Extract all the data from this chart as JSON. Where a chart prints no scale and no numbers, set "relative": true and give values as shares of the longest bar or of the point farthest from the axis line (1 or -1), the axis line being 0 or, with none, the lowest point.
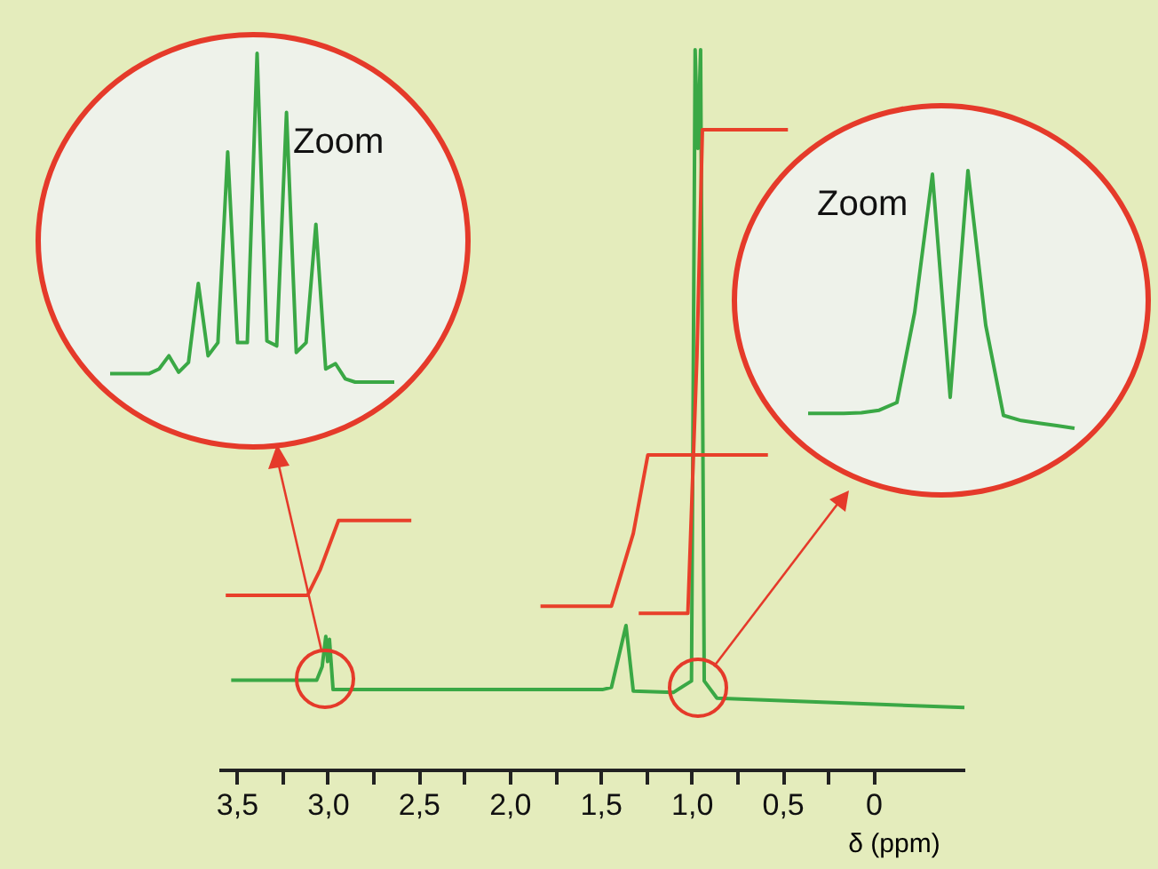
{
  "chart_data": [
    {
      "type": "line",
      "xlabel": "δ (ppm)",
      "relative": true,
      "xlim": [
        3.6,
        -0.5
      ],
      "xticks": [
        {
          "value": 3.5,
          "label": "3,5"
        },
        {
          "value": 3.25,
          "label": null
        },
        {
          "value": 3.0,
          "label": "3,0"
        },
        {
          "value": 2.75,
          "label": null
        },
        {
          "value": 2.5,
          "label": "2,5"
        },
        {
          "value": 2.25,
          "label": null
        },
        {
          "value": 2.0,
          "label": "2,0"
        },
        {
          "value": 1.75,
          "label": null
        },
        {
          "value": 1.5,
          "label": "1,5"
        },
        {
          "value": 1.25,
          "label": null
        },
        {
          "value": 1.0,
          "label": "1,0"
        },
        {
          "value": 0.75,
          "label": null
        },
        {
          "value": 0.5,
          "label": "0,5"
        },
        {
          "value": 0.25,
          "label": null
        },
        0
      ],
      "series": [
        {
          "color": "#3aa845",
          "x": [
            3.53,
            3.06,
            3.03,
            3.01,
            3.0,
            2.99,
            2.97,
            1.49,
            1.44,
            1.36,
            1.32,
            1.1,
            1.0,
            0.98,
            0.965,
            0.95,
            0.93,
            0.86,
            -0.5
          ],
          "values": [
            0.124,
            0.124,
            0.143,
            0.185,
            0.15,
            0.181,
            0.111,
            0.111,
            0.114,
            0.2,
            0.109,
            0.107,
            0.123,
            1.0,
            0.863,
            1.0,
            0.123,
            0.099,
            0.086
          ]
        },
        {
          "color": "#e8402a",
          "x": [
            3.56,
            3.11,
            3.04,
            2.94,
            2.54
          ],
          "values": [
            0.242,
            0.242,
            0.278,
            0.346,
            0.346
          ]
        },
        {
          "color": "#e8402a",
          "x": [
            1.83,
            1.44,
            1.32,
            1.24,
            0.58
          ],
          "values": [
            0.227,
            0.227,
            0.328,
            0.437,
            0.437
          ]
        },
        {
          "color": "#e8402a",
          "x": [
            1.29,
            1.02,
            0.97,
            0.94,
            0.47
          ],
          "values": [
            0.217,
            0.217,
            0.575,
            0.889,
            0.889
          ]
        }
      ]
    },
    {
      "type": "line",
      "relative": true,
      "tick_labels": false,
      "annotations": [
        "Zoom"
      ],
      "categories": [
        null,
        null,
        null,
        null,
        null,
        null,
        null,
        null,
        null,
        null,
        null,
        null,
        null,
        null,
        null,
        null,
        null,
        null,
        null,
        null,
        null,
        null,
        null,
        null,
        null,
        null,
        null,
        null,
        null,
        null
      ],
      "series": [
        {
          "color": "#3aa845",
          "values": [
            0.026,
            0.026,
            0.026,
            0.026,
            0.026,
            0.04,
            0.08,
            0.03,
            0.06,
            0.3,
            0.08,
            0.12,
            0.7,
            0.12,
            0.12,
            1.0,
            0.125,
            0.11,
            0.82,
            0.09,
            0.12,
            0.48,
            0.04,
            0.056,
            0.01,
            0.0,
            0.0,
            0.0,
            0.0,
            0.0
          ]
        }
      ]
    },
    {
      "type": "line",
      "relative": true,
      "tick_labels": false,
      "annotations": [
        "Zoom"
      ],
      "categories": [
        null,
        null,
        null,
        null,
        null,
        null,
        null,
        null,
        null,
        null,
        null,
        null,
        null,
        null,
        null,
        null
      ],
      "series": [
        {
          "color": "#3aa845",
          "values": [
            0.058,
            0.058,
            0.058,
            0.06,
            0.07,
            0.1,
            0.45,
            0.986,
            0.12,
            1.0,
            0.4,
            0.05,
            0.03,
            0.02,
            0.01,
            0.0
          ]
        }
      ]
    }
  ]
}
